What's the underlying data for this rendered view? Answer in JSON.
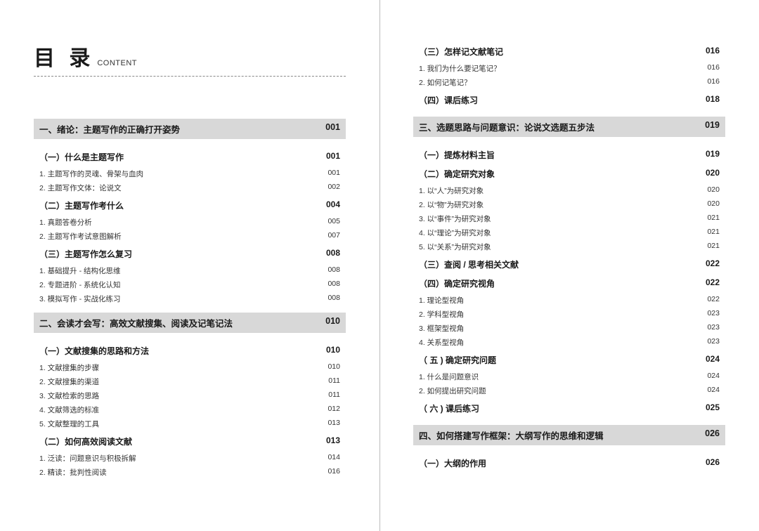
{
  "header": {
    "title_cn": "目 录",
    "title_en": "CONTENT"
  },
  "left": [
    {
      "type": "chapter",
      "label": "一、绪论：主题写作的正确打开姿势",
      "page": "001"
    },
    {
      "type": "section",
      "label": "（一）什么是主题写作",
      "page": "001"
    },
    {
      "type": "item",
      "label": "1. 主题写作的灵魂、骨架与血肉",
      "page": "001"
    },
    {
      "type": "item",
      "label": "2. 主题写作文体：论说文",
      "page": "002"
    },
    {
      "type": "section",
      "label": "（二）主题写作考什么",
      "page": "004"
    },
    {
      "type": "item",
      "label": "1. 真题答卷分析",
      "page": "005"
    },
    {
      "type": "item",
      "label": "2. 主题写作考试意图解析",
      "page": "007"
    },
    {
      "type": "section",
      "label": "（三）主题写作怎么复习",
      "page": "008"
    },
    {
      "type": "item",
      "label": "1. 基础提升 - 结构化思维",
      "page": "008"
    },
    {
      "type": "item",
      "label": "2. 专题进阶 - 系统化认知",
      "page": "008"
    },
    {
      "type": "item",
      "label": "3. 模拟写作 - 实战化练习",
      "page": "008"
    },
    {
      "type": "spacer"
    },
    {
      "type": "chapter",
      "label": "二、会读才会写：高效文献搜集、阅读及记笔记法",
      "page": "010"
    },
    {
      "type": "section",
      "label": "（一）文献搜集的思路和方法",
      "page": "010"
    },
    {
      "type": "item",
      "label": "1. 文献搜集的步骤",
      "page": "010"
    },
    {
      "type": "item",
      "label": "2. 文献搜集的渠道",
      "page": "011"
    },
    {
      "type": "item",
      "label": "3. 文献检索的思路",
      "page": "011"
    },
    {
      "type": "item",
      "label": "4. 文献筛选的标准",
      "page": "012"
    },
    {
      "type": "item",
      "label": "5. 文献整理的工具",
      "page": "013"
    },
    {
      "type": "section",
      "label": "（二）如何高效阅读文献",
      "page": "013"
    },
    {
      "type": "item",
      "label": "1. 泛读：问题意识与积极拆解",
      "page": "014"
    },
    {
      "type": "item",
      "label": "2. 精读：批判性阅读",
      "page": "016"
    }
  ],
  "right": [
    {
      "type": "section",
      "label": "（三）怎样记文献笔记",
      "page": "016"
    },
    {
      "type": "item",
      "label": "1. 我们为什么要记笔记？",
      "page": "016"
    },
    {
      "type": "item",
      "label": "2. 如何记笔记？",
      "page": "016"
    },
    {
      "type": "section",
      "label": "（四）课后练习",
      "page": "018"
    },
    {
      "type": "spacer"
    },
    {
      "type": "chapter",
      "label": "三、选题思路与问题意识：论说文选题五步法",
      "page": "019"
    },
    {
      "type": "section",
      "label": "（一）提炼材料主旨",
      "page": "019"
    },
    {
      "type": "section",
      "label": "（二）确定研究对象",
      "page": "020"
    },
    {
      "type": "item",
      "label": "1. 以“人”为研究对象",
      "page": "020"
    },
    {
      "type": "item",
      "label": "2. 以“物”为研究对象",
      "page": "020"
    },
    {
      "type": "item",
      "label": "3. 以“事件”为研究对象",
      "page": "021"
    },
    {
      "type": "item",
      "label": "4. 以“理论”为研究对象",
      "page": "021"
    },
    {
      "type": "item",
      "label": "5. 以“关系”为研究对象",
      "page": "021"
    },
    {
      "type": "section",
      "label": "（三）查阅 / 思考相关文献",
      "page": "022"
    },
    {
      "type": "section",
      "label": "（四）确定研究视角",
      "page": "022"
    },
    {
      "type": "item",
      "label": "1. 理论型视角",
      "page": "022"
    },
    {
      "type": "item",
      "label": "2. 学科型视角",
      "page": "023"
    },
    {
      "type": "item",
      "label": "3. 框架型视角",
      "page": "023"
    },
    {
      "type": "item",
      "label": "4. 关系型视角",
      "page": "023"
    },
    {
      "type": "section",
      "label": "（ 五 ) 确定研究问题",
      "page": "024"
    },
    {
      "type": "item",
      "label": "1. 什么是问题意识",
      "page": "024"
    },
    {
      "type": "item",
      "label": "2. 如何提出研究问题",
      "page": "024"
    },
    {
      "type": "section",
      "label": "（ 六 ) 课后练习",
      "page": "025"
    },
    {
      "type": "spacer"
    },
    {
      "type": "chapter",
      "label": "四、如何搭建写作框架：大纲写作的思维和逻辑",
      "page": "026"
    },
    {
      "type": "section",
      "label": "（一）大纲的作用",
      "page": "026"
    }
  ]
}
